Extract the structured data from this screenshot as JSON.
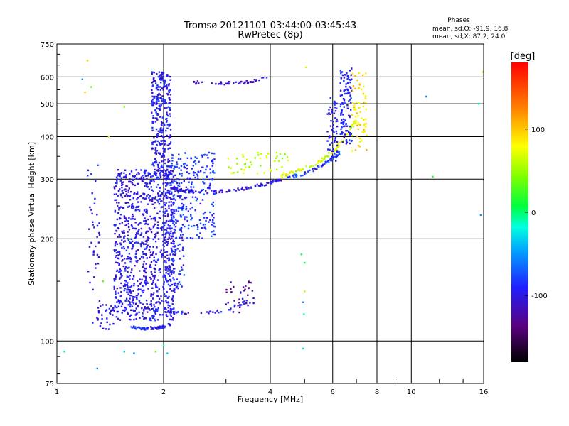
{
  "chart_data": {
    "type": "scatter",
    "title": "Tromsø 20121101 03:44:00-03:45:43",
    "subtitle": "RwPretec (8p)",
    "xlabel": "Frequency [MHz]",
    "ylabel": "Stationary phase Virtual Height [km]",
    "x_scale": "log",
    "y_scale": "log",
    "xlim": [
      1,
      16
    ],
    "ylim": [
      75,
      750
    ],
    "x_ticks": [
      1,
      2,
      4,
      6,
      8,
      10,
      16
    ],
    "y_ticks": [
      75,
      100,
      200,
      300,
      400,
      500,
      600,
      750
    ],
    "grid": true,
    "stats": {
      "heading": "Phases",
      "line_o": "mean, sd,O: -91.9, 16.8",
      "line_x": "mean, sd,X: 87.2, 24.0"
    },
    "colorbar": {
      "label": "[deg]",
      "range": [
        -180,
        180
      ],
      "ticks": [
        100,
        0,
        -100
      ]
    },
    "traces": [
      {
        "kind": "curve",
        "x": [
          1.6,
          1.75,
          1.9,
          2.0,
          2.1
        ],
        "y": [
          110,
          109,
          109,
          110,
          112
        ],
        "phase": -95,
        "n": 70
      },
      {
        "kind": "curve",
        "x": [
          2.1,
          2.25,
          2.45,
          2.8,
          3.3,
          3.9,
          4.3
        ],
        "y": [
          282,
          278,
          275,
          275,
          280,
          290,
          300
        ],
        "phase": -105,
        "n": 120
      },
      {
        "kind": "curve",
        "x": [
          4.3,
          4.8,
          5.3,
          5.8,
          6.2,
          6.6,
          7.0
        ],
        "y": [
          305,
          318,
          330,
          350,
          375,
          405,
          450
        ],
        "phase": 70,
        "n": 80
      },
      {
        "kind": "curve",
        "x": [
          4.4,
          4.9,
          5.4,
          5.9,
          6.3
        ],
        "y": [
          300,
          310,
          322,
          340,
          360
        ],
        "phase": -80,
        "n": 60
      },
      {
        "kind": "curve",
        "x": [
          2.3,
          2.7,
          3.1,
          3.5,
          3.9
        ],
        "y": [
          580,
          575,
          575,
          580,
          600
        ],
        "phase": -110,
        "n": 45
      },
      {
        "kind": "curve",
        "x": [
          1.7,
          1.95,
          2.2,
          2.6,
          3.0,
          3.5
        ],
        "y": [
          125,
          123,
          121,
          121,
          123,
          132
        ],
        "phase": -98,
        "n": 55
      },
      {
        "kind": "cluster",
        "x": [
          1.45,
          2.15
        ],
        "y": [
          115,
          320
        ],
        "phase": -100,
        "n": 950
      },
      {
        "kind": "cluster",
        "x": [
          1.85,
          2.1
        ],
        "y": [
          300,
          620
        ],
        "phase": -95,
        "n": 320
      },
      {
        "kind": "cluster",
        "x": [
          2.1,
          2.8
        ],
        "y": [
          200,
          360
        ],
        "phase": -85,
        "n": 220
      },
      {
        "kind": "cluster",
        "x": [
          2.0,
          2.3
        ],
        "y": [
          140,
          330
        ],
        "phase": -90,
        "n": 150
      },
      {
        "kind": "cluster",
        "x": [
          6.3,
          6.8
        ],
        "y": [
          380,
          640
        ],
        "phase": -90,
        "n": 110
      },
      {
        "kind": "cluster",
        "x": [
          6.8,
          7.5
        ],
        "y": [
          360,
          620
        ],
        "phase": 90,
        "n": 70
      },
      {
        "kind": "cluster",
        "x": [
          5.8,
          6.2
        ],
        "y": [
          330,
          520
        ],
        "phase": -95,
        "n": 60
      },
      {
        "kind": "cluster",
        "x": [
          1.22,
          1.32
        ],
        "y": [
          112,
          330
        ],
        "phase": -100,
        "n": 40
      },
      {
        "kind": "cluster",
        "x": [
          1.3,
          1.45
        ],
        "y": [
          108,
          128
        ],
        "phase": -100,
        "n": 30
      },
      {
        "kind": "cluster",
        "x": [
          3.0,
          3.6
        ],
        "y": [
          120,
          150
        ],
        "phase": -125,
        "n": 35
      },
      {
        "kind": "cluster",
        "x": [
          3.0,
          4.5
        ],
        "y": [
          310,
          360
        ],
        "phase": 60,
        "n": 50
      },
      {
        "kind": "scatter",
        "x": [
          1.05,
          1.22,
          1.25,
          1.3,
          1.18,
          1.2,
          1.4,
          1.55,
          4.9,
          5.0,
          4.95,
          11.5,
          15.5,
          15.7,
          15.9,
          11.0,
          1.9,
          2.0,
          2.05,
          1.55,
          1.65,
          5.0,
          4.95,
          4.98,
          5.05,
          1.35,
          1.6
        ],
        "y": [
          93,
          670,
          560,
          83,
          590,
          540,
          400,
          490,
          180,
          170,
          95,
          305,
          500,
          235,
          620,
          525,
          93,
          97,
          92,
          93,
          92,
          140,
          130,
          120,
          640,
          150,
          200
        ],
        "phase": 20,
        "n": 1
      }
    ]
  }
}
